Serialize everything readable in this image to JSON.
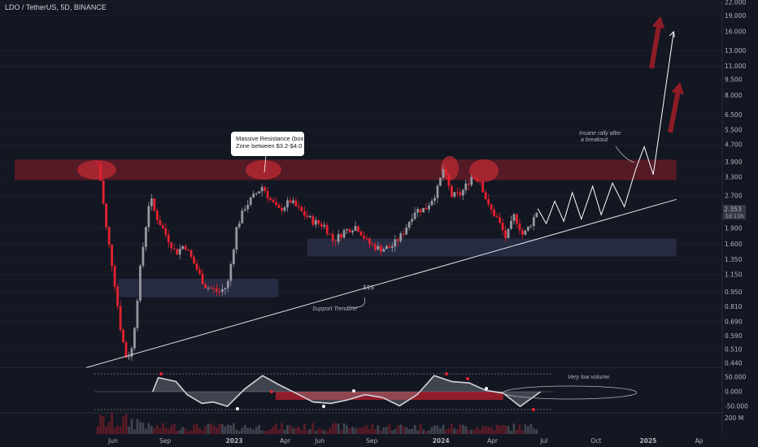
{
  "header": {
    "symbol_title": "LDO / TetherUS, 5D, BINANCE"
  },
  "annotations": {
    "resistance_callout": [
      "Massive Resistance (box)",
      "Zone between $3.2-$4.0"
    ],
    "rally_note": [
      "Insane rally after",
      "a breakout."
    ],
    "support_label": "Support Trendline",
    "low_volume_note": "Very low volume.",
    "dollar_marker": "$$$"
  },
  "price_tag": {
    "value": "2.353",
    "timer": "1d 11h"
  },
  "colors": {
    "background": "#131722",
    "bull": "#9598a1",
    "bear": "#e5212f",
    "resistance_zone": "#8b1e28",
    "support_zone": "#2a2e45",
    "arrow": "#8e1c26",
    "trendline": "#e0e3eb"
  },
  "chart_data": {
    "type": "candlestick",
    "title": "LDO / TetherUS, 5D, BINANCE",
    "y_scale": "log",
    "y_ticks": [
      "22.000",
      "19.000",
      "16.000",
      "13.000",
      "11.000",
      "9.500",
      "8.000",
      "6.500",
      "5.500",
      "4.700",
      "3.900",
      "3.300",
      "2.700",
      "2.353",
      "1.900",
      "1.600",
      "1.350",
      "1.150",
      "0.950",
      "0.810",
      "0.690",
      "0.590",
      "0.510",
      "0.440"
    ],
    "y_tick_values": [
      22,
      19,
      16,
      13,
      11,
      9.5,
      8,
      6.5,
      5.5,
      4.7,
      3.9,
      3.3,
      2.7,
      null,
      1.9,
      1.6,
      1.35,
      1.15,
      0.95,
      0.81,
      0.69,
      0.59,
      0.51,
      0.44
    ],
    "x_ticks": [
      "Jun",
      "Sep",
      "2023",
      "Apr",
      "Jun",
      "Sep",
      "2024",
      "Apr",
      "Jul",
      "Oct",
      "2025",
      "Ap"
    ],
    "x_tick_dates": [
      "2022-06-01",
      "2022-09-01",
      "2023-01-01",
      "2023-04-01",
      "2023-06-01",
      "2023-09-01",
      "2024-01-01",
      "2024-04-01",
      "2024-07-01",
      "2024-10-01",
      "2025-01-01",
      "2025-04-01"
    ],
    "price_path": [
      [
        "2022-05-05",
        3.8
      ],
      [
        "2022-05-10",
        3.2
      ],
      [
        "2022-05-20",
        1.9
      ],
      [
        "2022-06-01",
        1.2
      ],
      [
        "2022-06-15",
        0.62
      ],
      [
        "2022-06-25",
        0.46
      ],
      [
        "2022-07-05",
        0.52
      ],
      [
        "2022-07-20",
        1.3
      ],
      [
        "2022-08-05",
        2.7
      ],
      [
        "2022-08-15",
        2.2
      ],
      [
        "2022-09-01",
        1.8
      ],
      [
        "2022-09-20",
        1.45
      ],
      [
        "2022-10-05",
        1.6
      ],
      [
        "2022-10-25",
        1.25
      ],
      [
        "2022-11-10",
        1.02
      ],
      [
        "2022-12-05",
        0.95
      ],
      [
        "2022-12-20",
        1.02
      ],
      [
        "2023-01-05",
        1.9
      ],
      [
        "2023-01-20",
        2.4
      ],
      [
        "2023-02-05",
        2.7
      ],
      [
        "2023-02-20",
        3.0
      ],
      [
        "2023-03-05",
        2.6
      ],
      [
        "2023-03-20",
        2.3
      ],
      [
        "2023-04-10",
        2.55
      ],
      [
        "2023-05-01",
        2.25
      ],
      [
        "2023-05-20",
        2.05
      ],
      [
        "2023-06-10",
        1.95
      ],
      [
        "2023-06-25",
        1.65
      ],
      [
        "2023-07-15",
        1.85
      ],
      [
        "2023-08-05",
        1.95
      ],
      [
        "2023-08-25",
        1.62
      ],
      [
        "2023-09-15",
        1.52
      ],
      [
        "2023-10-05",
        1.55
      ],
      [
        "2023-10-25",
        1.78
      ],
      [
        "2023-11-15",
        2.3
      ],
      [
        "2023-12-05",
        2.35
      ],
      [
        "2023-12-25",
        2.85
      ],
      [
        "2024-01-05",
        3.6
      ],
      [
        "2024-01-20",
        2.7
      ],
      [
        "2024-02-05",
        2.75
      ],
      [
        "2024-02-25",
        3.35
      ],
      [
        "2024-03-10",
        3.2
      ],
      [
        "2024-03-25",
        2.4
      ],
      [
        "2024-04-10",
        2.1
      ],
      [
        "2024-04-25",
        1.7
      ],
      [
        "2024-05-10",
        2.2
      ],
      [
        "2024-05-25",
        1.75
      ],
      [
        "2024-06-10",
        2.05
      ],
      [
        "2024-06-20",
        2.35
      ]
    ],
    "projection_path": [
      [
        "2024-06-20",
        2.35
      ],
      [
        "2024-07-05",
        2.0
      ],
      [
        "2024-07-20",
        2.55
      ],
      [
        "2024-08-05",
        2.05
      ],
      [
        "2024-08-20",
        2.8
      ],
      [
        "2024-09-05",
        2.1
      ],
      [
        "2024-09-25",
        3.0
      ],
      [
        "2024-10-10",
        2.2
      ],
      [
        "2024-10-30",
        3.1
      ],
      [
        "2024-11-20",
        2.4
      ],
      [
        "2024-12-10",
        3.6
      ],
      [
        "2024-12-25",
        4.6
      ],
      [
        "2025-01-10",
        3.4
      ],
      [
        "2025-02-15",
        16.0
      ]
    ],
    "resistance_zone": {
      "from": "2022-05-01",
      "to": "2025-02-20",
      "low": 3.2,
      "high": 4.0
    },
    "support_zones": [
      {
        "from": "2022-06-10",
        "to": "2023-03-20",
        "low": 0.9,
        "high": 1.1
      },
      {
        "from": "2023-05-10",
        "to": "2025-02-20",
        "low": 1.4,
        "high": 1.7
      }
    ],
    "support_trendline": [
      [
        "2022-04-15",
        0.42
      ],
      [
        "2025-02-20",
        2.6
      ]
    ],
    "oscillator": {
      "ticks": [
        "50.000",
        "0.000",
        "-50.000"
      ],
      "tick_values": [
        50,
        0,
        -50
      ],
      "path": [
        [
          "2022-08-10",
          0
        ],
        [
          "2022-08-20",
          48
        ],
        [
          "2022-09-20",
          35
        ],
        [
          "2022-10-10",
          -10
        ],
        [
          "2022-11-05",
          -40
        ],
        [
          "2022-11-25",
          -35
        ],
        [
          "2022-12-20",
          -50
        ],
        [
          "2023-01-20",
          10
        ],
        [
          "2023-02-20",
          55
        ],
        [
          "2023-03-20",
          25
        ],
        [
          "2023-04-20",
          -5
        ],
        [
          "2023-05-20",
          -35
        ],
        [
          "2023-06-20",
          -40
        ],
        [
          "2023-07-20",
          -28
        ],
        [
          "2023-08-20",
          -10
        ],
        [
          "2023-09-20",
          -20
        ],
        [
          "2023-10-20",
          -48
        ],
        [
          "2023-11-20",
          -10
        ],
        [
          "2023-12-20",
          55
        ],
        [
          "2024-01-20",
          35
        ],
        [
          "2024-02-20",
          30
        ],
        [
          "2024-03-20",
          5
        ],
        [
          "2024-04-20",
          -5
        ],
        [
          "2024-05-20",
          -50
        ],
        [
          "2024-06-25",
          0
        ]
      ],
      "histogram_range": [
        "2023-03-15",
        "2024-04-20"
      ]
    },
    "volume": {
      "tick": "200 M",
      "tick_value": 200
    }
  }
}
